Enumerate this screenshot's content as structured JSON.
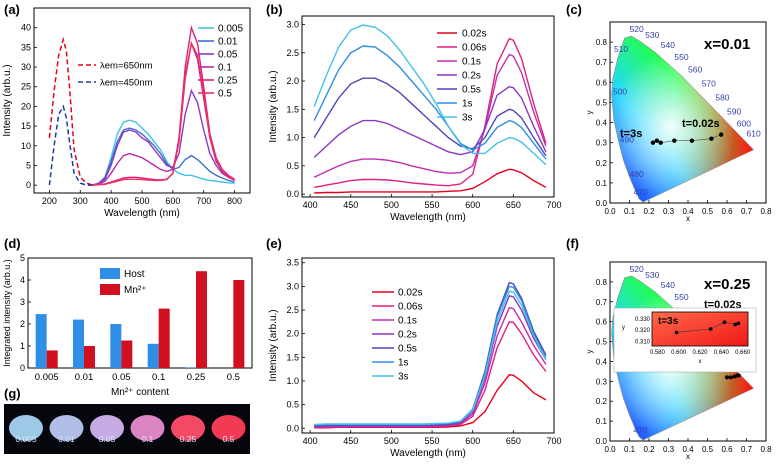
{
  "colors": {
    "red": "#e8001c",
    "darkred": "#a50f15",
    "blue": "#1f3da0",
    "host": "#2f8ee6",
    "mn": "#d01020",
    "cyan": "#44c2e6"
  },
  "chart_data": [
    {
      "panel": "a",
      "type": "line",
      "xlabel": "Wavelength (nm)",
      "ylabel": "Intensity (arb.u.)",
      "xlim": [
        150,
        850
      ],
      "ylim": [
        -2,
        45
      ],
      "xticks": [
        200,
        300,
        400,
        500,
        600,
        700,
        800
      ],
      "yticks": [
        0,
        5,
        10,
        15,
        20,
        25,
        30,
        35,
        40
      ],
      "excitation": [
        {
          "name": "λem=650nm",
          "color": "#e8001c",
          "x": [
            200,
            215,
            230,
            245,
            255,
            265,
            280,
            300,
            320,
            340
          ],
          "y": [
            12,
            24,
            33,
            37,
            34,
            25,
            9,
            2,
            0.5,
            0
          ]
        },
        {
          "name": "λem=450nm",
          "color": "#1f3da0",
          "x": [
            200,
            215,
            230,
            245,
            255,
            265,
            280,
            300,
            320,
            340
          ],
          "y": [
            0,
            10,
            18,
            20,
            17,
            11,
            3,
            0.5,
            0,
            0
          ]
        }
      ],
      "x": [
        340,
        360,
        380,
        400,
        420,
        440,
        460,
        480,
        500,
        520,
        540,
        560,
        580,
        600,
        620,
        640,
        660,
        680,
        700,
        720,
        740,
        760,
        780,
        800
      ],
      "series": [
        {
          "name": "0.005",
          "color": "#44c2e6",
          "values": [
            0,
            0.5,
            2,
            7,
            13,
            16,
            16.5,
            16,
            14.5,
            13,
            11,
            9,
            6,
            4,
            3,
            2.5,
            2.5,
            2,
            1.5,
            1.2,
            1,
            0.8,
            0.6,
            0.5
          ]
        },
        {
          "name": "0.01",
          "color": "#3f6fc8",
          "values": [
            0,
            0.5,
            2,
            6,
            11,
            14,
            14.5,
            14,
            13,
            11.5,
            10,
            8,
            5.5,
            4,
            4.5,
            6.5,
            7.5,
            6.5,
            5,
            3.5,
            2.5,
            1.8,
            1.2,
            0.8
          ]
        },
        {
          "name": "0.05",
          "color": "#8c37c2",
          "values": [
            0,
            0.4,
            1.5,
            5,
            10,
            13.5,
            14,
            13.5,
            12,
            11,
            9,
            7,
            5,
            4.5,
            8,
            18,
            24,
            21,
            14,
            8,
            5,
            3,
            2,
            1.2
          ]
        },
        {
          "name": "0.1",
          "color": "#b82ca6",
          "values": [
            0,
            0.3,
            1,
            3,
            5.5,
            7.5,
            8,
            7.5,
            7,
            6,
            5,
            4,
            3.5,
            4,
            11,
            27,
            36,
            32,
            22,
            12,
            6,
            3.5,
            2,
            1.3
          ]
        },
        {
          "name": "0.25",
          "color": "#e0207e",
          "values": [
            0,
            0.1,
            0.3,
            0.8,
            1.3,
            1.8,
            2,
            2,
            1.8,
            1.6,
            1.4,
            1.3,
            1.5,
            3,
            12,
            30,
            40,
            36,
            25,
            13,
            7,
            4,
            2.5,
            1.5
          ]
        },
        {
          "name": "0.5",
          "color": "#f0305a",
          "values": [
            0,
            0.1,
            0.2,
            0.6,
            1,
            1.4,
            1.5,
            1.5,
            1.4,
            1.3,
            1.2,
            1.2,
            1.4,
            3,
            11,
            28,
            36,
            33,
            23,
            12,
            6.5,
            3.5,
            2.2,
            1.4
          ]
        }
      ]
    },
    {
      "panel": "b",
      "type": "line",
      "xlabel": "Wavelength (nm)",
      "ylabel": "Intensity (arb.u.)",
      "xlim": [
        390,
        700
      ],
      "ylim": [
        -0.05,
        3.15
      ],
      "xticks": [
        400,
        450,
        500,
        550,
        600,
        650,
        700
      ],
      "yticks": [
        0,
        0.5,
        1.0,
        1.5,
        2.0,
        2.5,
        3.0
      ],
      "x": [
        405,
        420,
        435,
        450,
        465,
        480,
        495,
        510,
        525,
        540,
        555,
        570,
        585,
        600,
        615,
        630,
        645,
        650,
        660,
        675,
        690
      ],
      "series": [
        {
          "name": "0.02s",
          "color": "#e8001c",
          "values": [
            0.02,
            0.03,
            0.03,
            0.04,
            0.04,
            0.04,
            0.04,
            0.04,
            0.04,
            0.04,
            0.04,
            0.05,
            0.06,
            0.1,
            0.22,
            0.36,
            0.44,
            0.43,
            0.38,
            0.24,
            0.12
          ]
        },
        {
          "name": "0.06s",
          "color": "#e0207e",
          "values": [
            0.12,
            0.16,
            0.2,
            0.24,
            0.26,
            0.26,
            0.25,
            0.23,
            0.2,
            0.18,
            0.16,
            0.15,
            0.18,
            0.35,
            1.2,
            2.3,
            2.75,
            2.72,
            2.4,
            1.6,
            0.9
          ]
        },
        {
          "name": "0.1s",
          "color": "#c02fb0",
          "values": [
            0.3,
            0.4,
            0.5,
            0.58,
            0.62,
            0.62,
            0.6,
            0.56,
            0.5,
            0.45,
            0.4,
            0.37,
            0.38,
            0.5,
            1.15,
            2.1,
            2.47,
            2.44,
            2.15,
            1.45,
            0.85
          ]
        },
        {
          "name": "0.2s",
          "color": "#8c37c2",
          "values": [
            0.65,
            0.85,
            1.05,
            1.2,
            1.3,
            1.3,
            1.25,
            1.15,
            1.05,
            0.95,
            0.85,
            0.75,
            0.7,
            0.75,
            1.15,
            1.75,
            1.9,
            1.88,
            1.7,
            1.2,
            0.75
          ]
        },
        {
          "name": "0.5s",
          "color": "#4f47b8",
          "values": [
            1.0,
            1.35,
            1.7,
            1.95,
            2.05,
            2.05,
            1.95,
            1.8,
            1.6,
            1.4,
            1.2,
            1.0,
            0.85,
            0.8,
            1.0,
            1.38,
            1.5,
            1.48,
            1.35,
            1.0,
            0.68
          ]
        },
        {
          "name": "1s",
          "color": "#2f8ee6",
          "values": [
            1.3,
            1.75,
            2.2,
            2.5,
            2.62,
            2.6,
            2.45,
            2.25,
            2.0,
            1.75,
            1.5,
            1.2,
            0.9,
            0.78,
            0.9,
            1.18,
            1.3,
            1.28,
            1.18,
            0.9,
            0.62
          ]
        },
        {
          "name": "3s",
          "color": "#44c2e6",
          "values": [
            1.55,
            2.1,
            2.6,
            2.9,
            2.99,
            2.95,
            2.8,
            2.55,
            2.25,
            1.95,
            1.6,
            1.2,
            0.88,
            0.72,
            0.72,
            0.9,
            1.0,
            0.99,
            0.92,
            0.72,
            0.52
          ]
        }
      ]
    },
    {
      "panel": "c",
      "type": "scatter",
      "title": "x=0.01",
      "xlabel": "x",
      "ylabel": "y",
      "xlim": [
        0,
        0.8
      ],
      "ylim": [
        0,
        0.9
      ],
      "xticks": [
        0.0,
        0.1,
        0.2,
        0.3,
        0.4,
        0.5,
        0.6,
        0.7,
        0.8
      ],
      "yticks": [
        0.0,
        0.1,
        0.2,
        0.3,
        0.4,
        0.5,
        0.6,
        0.7,
        0.8
      ],
      "wavelength_labels": [
        "470",
        "480",
        "490",
        "500",
        "510",
        "520",
        "530",
        "540",
        "550",
        "560",
        "570",
        "580",
        "590",
        "600",
        "610"
      ],
      "annotations": [
        "t=3s",
        "t=0.02s"
      ],
      "points": {
        "x": [
          0.22,
          0.24,
          0.26,
          0.33,
          0.42,
          0.52,
          0.57
        ],
        "y": [
          0.3,
          0.31,
          0.3,
          0.31,
          0.31,
          0.32,
          0.34
        ]
      }
    },
    {
      "panel": "d",
      "type": "bar",
      "xlabel": "Mn2+ content",
      "ylabel": "Integrated intensity (arb.u.)",
      "ylim": [
        0,
        5
      ],
      "yticks": [
        0,
        1,
        2,
        3,
        4,
        5
      ],
      "categories": [
        "0.005",
        "0.01",
        "0.05",
        "0.1",
        "0.25",
        "0.5"
      ],
      "series": [
        {
          "name": "Host",
          "color": "#2f8ee6",
          "values": [
            2.45,
            2.2,
            2.0,
            1.1,
            0.03,
            0.0
          ]
        },
        {
          "name": "Mn2+",
          "color": "#d01020",
          "values": [
            0.8,
            1.0,
            1.25,
            2.7,
            4.4,
            4.0
          ]
        }
      ]
    },
    {
      "panel": "e",
      "type": "line",
      "xlabel": "Wavelength (nm)",
      "ylabel": "Intensity (arb.u.)",
      "xlim": [
        390,
        700
      ],
      "ylim": [
        -0.1,
        3.6
      ],
      "xticks": [
        400,
        450,
        500,
        550,
        600,
        650,
        700
      ],
      "yticks": [
        0.0,
        0.5,
        1.0,
        1.5,
        2.0,
        2.5,
        3.0,
        3.5
      ],
      "x": [
        405,
        420,
        435,
        450,
        465,
        480,
        495,
        510,
        525,
        540,
        555,
        570,
        585,
        600,
        615,
        630,
        645,
        650,
        660,
        675,
        690
      ],
      "series": [
        {
          "name": "0.02s",
          "color": "#e8001c",
          "values": [
            0.01,
            0.01,
            0.02,
            0.02,
            0.02,
            0.02,
            0.02,
            0.02,
            0.02,
            0.02,
            0.02,
            0.03,
            0.05,
            0.12,
            0.35,
            0.8,
            1.13,
            1.12,
            1.0,
            0.75,
            0.6
          ]
        },
        {
          "name": "0.06s",
          "color": "#e0207e",
          "values": [
            0.02,
            0.02,
            0.02,
            0.03,
            0.03,
            0.03,
            0.03,
            0.03,
            0.03,
            0.03,
            0.03,
            0.05,
            0.08,
            0.25,
            0.8,
            1.7,
            2.25,
            2.24,
            2.0,
            1.55,
            1.2
          ]
        },
        {
          "name": "0.1s",
          "color": "#c02fb0",
          "values": [
            0.03,
            0.03,
            0.04,
            0.04,
            0.04,
            0.04,
            0.04,
            0.04,
            0.04,
            0.04,
            0.05,
            0.06,
            0.1,
            0.3,
            0.95,
            1.95,
            2.55,
            2.53,
            2.25,
            1.75,
            1.35
          ]
        },
        {
          "name": "0.2s",
          "color": "#8c37c2",
          "values": [
            0.04,
            0.05,
            0.05,
            0.05,
            0.05,
            0.05,
            0.05,
            0.05,
            0.05,
            0.05,
            0.06,
            0.07,
            0.12,
            0.35,
            1.05,
            2.15,
            2.8,
            2.78,
            2.5,
            1.9,
            1.45
          ]
        },
        {
          "name": "0.5s",
          "color": "#4f47b8",
          "values": [
            0.06,
            0.07,
            0.07,
            0.07,
            0.07,
            0.07,
            0.07,
            0.07,
            0.07,
            0.07,
            0.08,
            0.09,
            0.14,
            0.4,
            1.2,
            2.4,
            3.08,
            3.05,
            2.75,
            2.05,
            1.55
          ]
        },
        {
          "name": "1s",
          "color": "#2f8ee6",
          "values": [
            0.07,
            0.08,
            0.08,
            0.08,
            0.08,
            0.08,
            0.08,
            0.08,
            0.08,
            0.08,
            0.09,
            0.1,
            0.15,
            0.4,
            1.15,
            2.35,
            3.0,
            2.98,
            2.7,
            2.0,
            1.5
          ]
        },
        {
          "name": "3s",
          "color": "#44c2e6",
          "values": [
            0.08,
            0.09,
            0.09,
            0.09,
            0.09,
            0.09,
            0.09,
            0.09,
            0.09,
            0.09,
            0.1,
            0.11,
            0.15,
            0.38,
            1.1,
            2.25,
            2.9,
            2.88,
            2.6,
            1.95,
            1.45
          ]
        }
      ]
    },
    {
      "panel": "f",
      "type": "scatter",
      "title": "x=0.25",
      "xlabel": "x",
      "ylabel": "y",
      "xlim": [
        0,
        0.8
      ],
      "ylim": [
        0,
        0.9
      ],
      "xticks": [
        0.0,
        0.1,
        0.2,
        0.3,
        0.4,
        0.5,
        0.6,
        0.7,
        0.8
      ],
      "yticks": [
        0.0,
        0.1,
        0.2,
        0.3,
        0.4,
        0.5,
        0.6,
        0.7,
        0.8
      ],
      "wavelength_labels": [
        "470",
        "520",
        "530",
        "540",
        "550"
      ],
      "annotations": [
        "t=0.02s"
      ],
      "points": {
        "x": [
          0.6,
          0.62,
          0.64,
          0.655,
          0.66
        ],
        "y": [
          0.32,
          0.32,
          0.325,
          0.33,
          0.33
        ]
      },
      "inset": {
        "annotations": [
          "t=3s"
        ],
        "xlim": [
          0.575,
          0.665
        ],
        "ylim": [
          0.306,
          0.336
        ],
        "xticks": [
          0.58,
          0.6,
          0.62,
          0.64,
          0.66
        ],
        "yticks": [
          0.31,
          0.32,
          0.33
        ],
        "xlabel": "x",
        "ylabel": "y",
        "points": {
          "x": [
            0.598,
            0.63,
            0.643,
            0.653,
            0.656
          ],
          "y": [
            0.318,
            0.321,
            0.327,
            0.325,
            0.326
          ]
        }
      }
    },
    {
      "panel": "g",
      "type": "photo",
      "labels": [
        "0.005",
        "0.01",
        "0.05",
        "0.1",
        "0.25",
        "0.5"
      ],
      "glow_colors": [
        "#a6d4f2",
        "#b9c7f0",
        "#d0b3ef",
        "#e98ccc",
        "#ff4d6a",
        "#ff3d5a"
      ]
    }
  ],
  "panel_labels": {
    "a": "(a)",
    "b": "(b)",
    "c": "(c)",
    "d": "(d)",
    "e": "(e)",
    "f": "(f)",
    "g": "(g)"
  },
  "legend_a_excitation": [
    "λem=650nm",
    "λem=450nm"
  ],
  "legend_d": [
    "Host",
    "Mn²⁺"
  ],
  "xlabel_d": "Mn²⁺ content"
}
